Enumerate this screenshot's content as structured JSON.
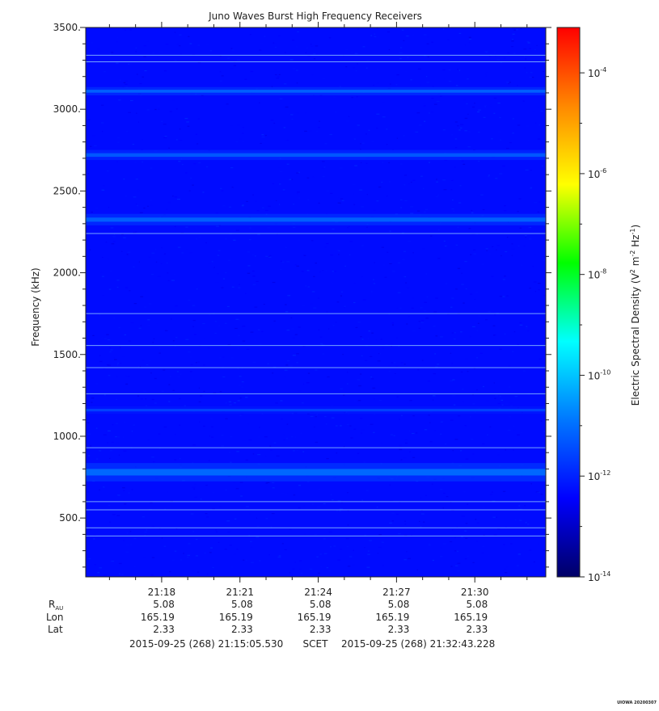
{
  "chart_data": {
    "type": "heatmap",
    "title": "Juno Waves Burst High Frequency Receivers",
    "ylabel": "Frequency (kHz)",
    "ylim": [
      140,
      3500
    ],
    "yticks": [
      {
        "value": 500,
        "label": "500."
      },
      {
        "value": 1000,
        "label": "1000."
      },
      {
        "value": 1500,
        "label": "1500."
      },
      {
        "value": 2000,
        "label": "2000."
      },
      {
        "value": 2500,
        "label": "2500."
      },
      {
        "value": 3000,
        "label": "3000."
      },
      {
        "value": 3500,
        "label": "3500."
      }
    ],
    "xlim_minutes": [
      1275.09,
      1292.72
    ],
    "xticks": [
      {
        "value": 1278,
        "label": "21:18"
      },
      {
        "value": 1281,
        "label": "21:21"
      },
      {
        "value": 1284,
        "label": "21:24"
      },
      {
        "value": 1287,
        "label": "21:27"
      },
      {
        "value": 1290,
        "label": "21:30"
      }
    ],
    "ephemeris": {
      "row_labels": {
        "rau_main": "R",
        "rau_sub": "AU",
        "lon": "Lon",
        "lat": "Lat"
      },
      "rau": [
        "5.08",
        "5.08",
        "5.08",
        "5.08",
        "5.08"
      ],
      "lon": [
        "165.19",
        "165.19",
        "165.19",
        "165.19",
        "165.19"
      ],
      "lat": [
        "2.33",
        "2.33",
        "2.33",
        "2.33",
        "2.33"
      ]
    },
    "time_range": {
      "start": "2015-09-25 (268) 21:15:05.530",
      "label": "SCET",
      "end": "2015-09-25 (268) 21:32:43.228"
    },
    "background_level_log10": -12.3,
    "emission_bands": [
      {
        "freq_khz": 3110,
        "level_log10": -11.2,
        "width_khz": 18
      },
      {
        "freq_khz": 2720,
        "level_log10": -11.3,
        "width_khz": 22
      },
      {
        "freq_khz": 2325,
        "level_log10": -11.2,
        "width_khz": 25
      },
      {
        "freq_khz": 1160,
        "level_log10": -11.6,
        "width_khz": 16
      },
      {
        "freq_khz": 780,
        "level_log10": -11.1,
        "width_khz": 40
      }
    ],
    "interference_lines_khz": [
      3330,
      3290,
      2240,
      1750,
      1555,
      1420,
      1260,
      930,
      600,
      550,
      440,
      390
    ],
    "colorbar": {
      "label_main": "Electric Spectral Density (V",
      "label_exp1": "2",
      "label_mid": " m",
      "label_exp2": "-2",
      "label_mid2": " Hz",
      "label_exp3": "-1",
      "label_end": ")",
      "range_log10": [
        -14,
        -3.1
      ],
      "ticks": [
        {
          "exp": -14,
          "base": "10",
          "power": "-14"
        },
        {
          "exp": -12,
          "base": "10",
          "power": "-12"
        },
        {
          "exp": -10,
          "base": "10",
          "power": "-10"
        },
        {
          "exp": -8,
          "base": "10",
          "power": "-8"
        },
        {
          "exp": -6,
          "base": "10",
          "power": "-6"
        },
        {
          "exp": -4,
          "base": "10",
          "power": "-4"
        }
      ],
      "colors": [
        "#000066",
        "#0000ff",
        "#0077ff",
        "#00ffff",
        "#00ff00",
        "#ffff00",
        "#ff8800",
        "#ff0000"
      ]
    },
    "footer_tag": "UIOWA 20200307"
  }
}
